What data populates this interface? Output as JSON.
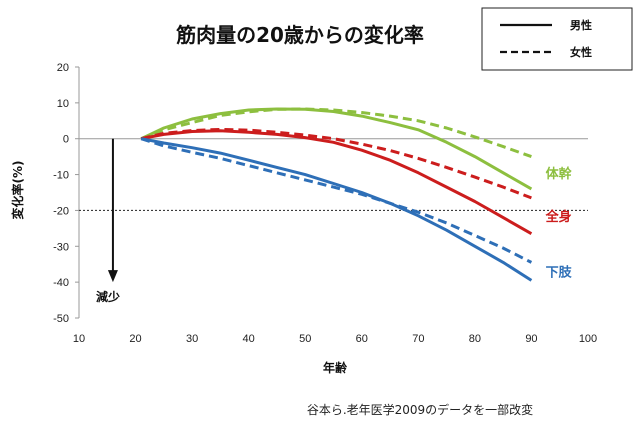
{
  "chart_data": {
    "type": "line",
    "title": "筋肉量の20歳からの変化率",
    "xlabel": "年齢",
    "ylabel": "変化率(%)",
    "xlim": [
      10,
      100
    ],
    "ylim": [
      -50,
      20
    ],
    "x_ticks": [
      10,
      20,
      30,
      40,
      50,
      60,
      70,
      80,
      90,
      100
    ],
    "y_ticks": [
      20,
      10,
      0,
      -10,
      -20,
      -30,
      -40,
      -50
    ],
    "reference_line": -20,
    "legend": [
      {
        "label": "男性",
        "style": "solid"
      },
      {
        "label": "女性",
        "style": "dashed"
      }
    ],
    "groups": [
      {
        "label": "体幹",
        "color": "#8DBF3F"
      },
      {
        "label": "全身",
        "color": "#CC1D1D"
      },
      {
        "label": "下肢",
        "color": "#2E6FB7"
      }
    ],
    "series": [
      {
        "group": 0,
        "style": "solid",
        "x": [
          21,
          25,
          30,
          35,
          40,
          45,
          50,
          55,
          60,
          65,
          70,
          75,
          80,
          85,
          90
        ],
        "values": [
          0,
          3,
          5.5,
          7,
          8,
          8.3,
          8.2,
          7.6,
          6.3,
          4.5,
          2.5,
          -1,
          -5,
          -9.5,
          -14
        ]
      },
      {
        "group": 0,
        "style": "dashed",
        "x": [
          21,
          25,
          30,
          35,
          40,
          45,
          50,
          55,
          60,
          65,
          70,
          75,
          80,
          85,
          90
        ],
        "values": [
          0,
          2.5,
          4.5,
          6.5,
          7.5,
          8.2,
          8.3,
          8,
          7.3,
          6.3,
          5,
          3,
          0.5,
          -2.2,
          -5
        ]
      },
      {
        "group": 1,
        "style": "solid",
        "x": [
          21,
          25,
          30,
          35,
          40,
          45,
          50,
          55,
          60,
          65,
          70,
          75,
          80,
          85,
          90
        ],
        "values": [
          0,
          1.2,
          2,
          2.2,
          1.8,
          1.2,
          0.3,
          -1,
          -3.2,
          -6,
          -9.5,
          -13.5,
          -17.5,
          -22,
          -26.5
        ]
      },
      {
        "group": 1,
        "style": "dashed",
        "x": [
          21,
          25,
          30,
          35,
          40,
          45,
          50,
          55,
          60,
          65,
          70,
          75,
          80,
          85,
          90
        ],
        "values": [
          0,
          1.5,
          2.3,
          2.6,
          2.4,
          1.8,
          1,
          0,
          -1.5,
          -3.3,
          -5.5,
          -8,
          -10.7,
          -13.5,
          -16.5
        ]
      },
      {
        "group": 2,
        "style": "solid",
        "x": [
          21,
          25,
          30,
          35,
          40,
          45,
          50,
          55,
          60,
          65,
          70,
          75,
          80,
          85,
          90
        ],
        "values": [
          0,
          -1.2,
          -2.5,
          -4,
          -6,
          -8,
          -10,
          -12.5,
          -15,
          -18,
          -21.5,
          -25.5,
          -30,
          -34.5,
          -39.5
        ]
      },
      {
        "group": 2,
        "style": "dashed",
        "x": [
          21,
          25,
          30,
          35,
          40,
          45,
          50,
          55,
          60,
          65,
          70,
          75,
          80,
          85,
          90
        ],
        "values": [
          0,
          -2,
          -3.8,
          -5.5,
          -7.5,
          -9.5,
          -11.5,
          -13.5,
          -15.5,
          -18,
          -20.5,
          -23.5,
          -27,
          -30.5,
          -34.5
        ]
      }
    ],
    "annotations": {
      "decrease_label": "減少",
      "arrow_x": 16,
      "arrow_y_from": 0,
      "arrow_y_to": -40
    },
    "source_note": "谷本ら.老年医学2009のデータを一部改変"
  }
}
